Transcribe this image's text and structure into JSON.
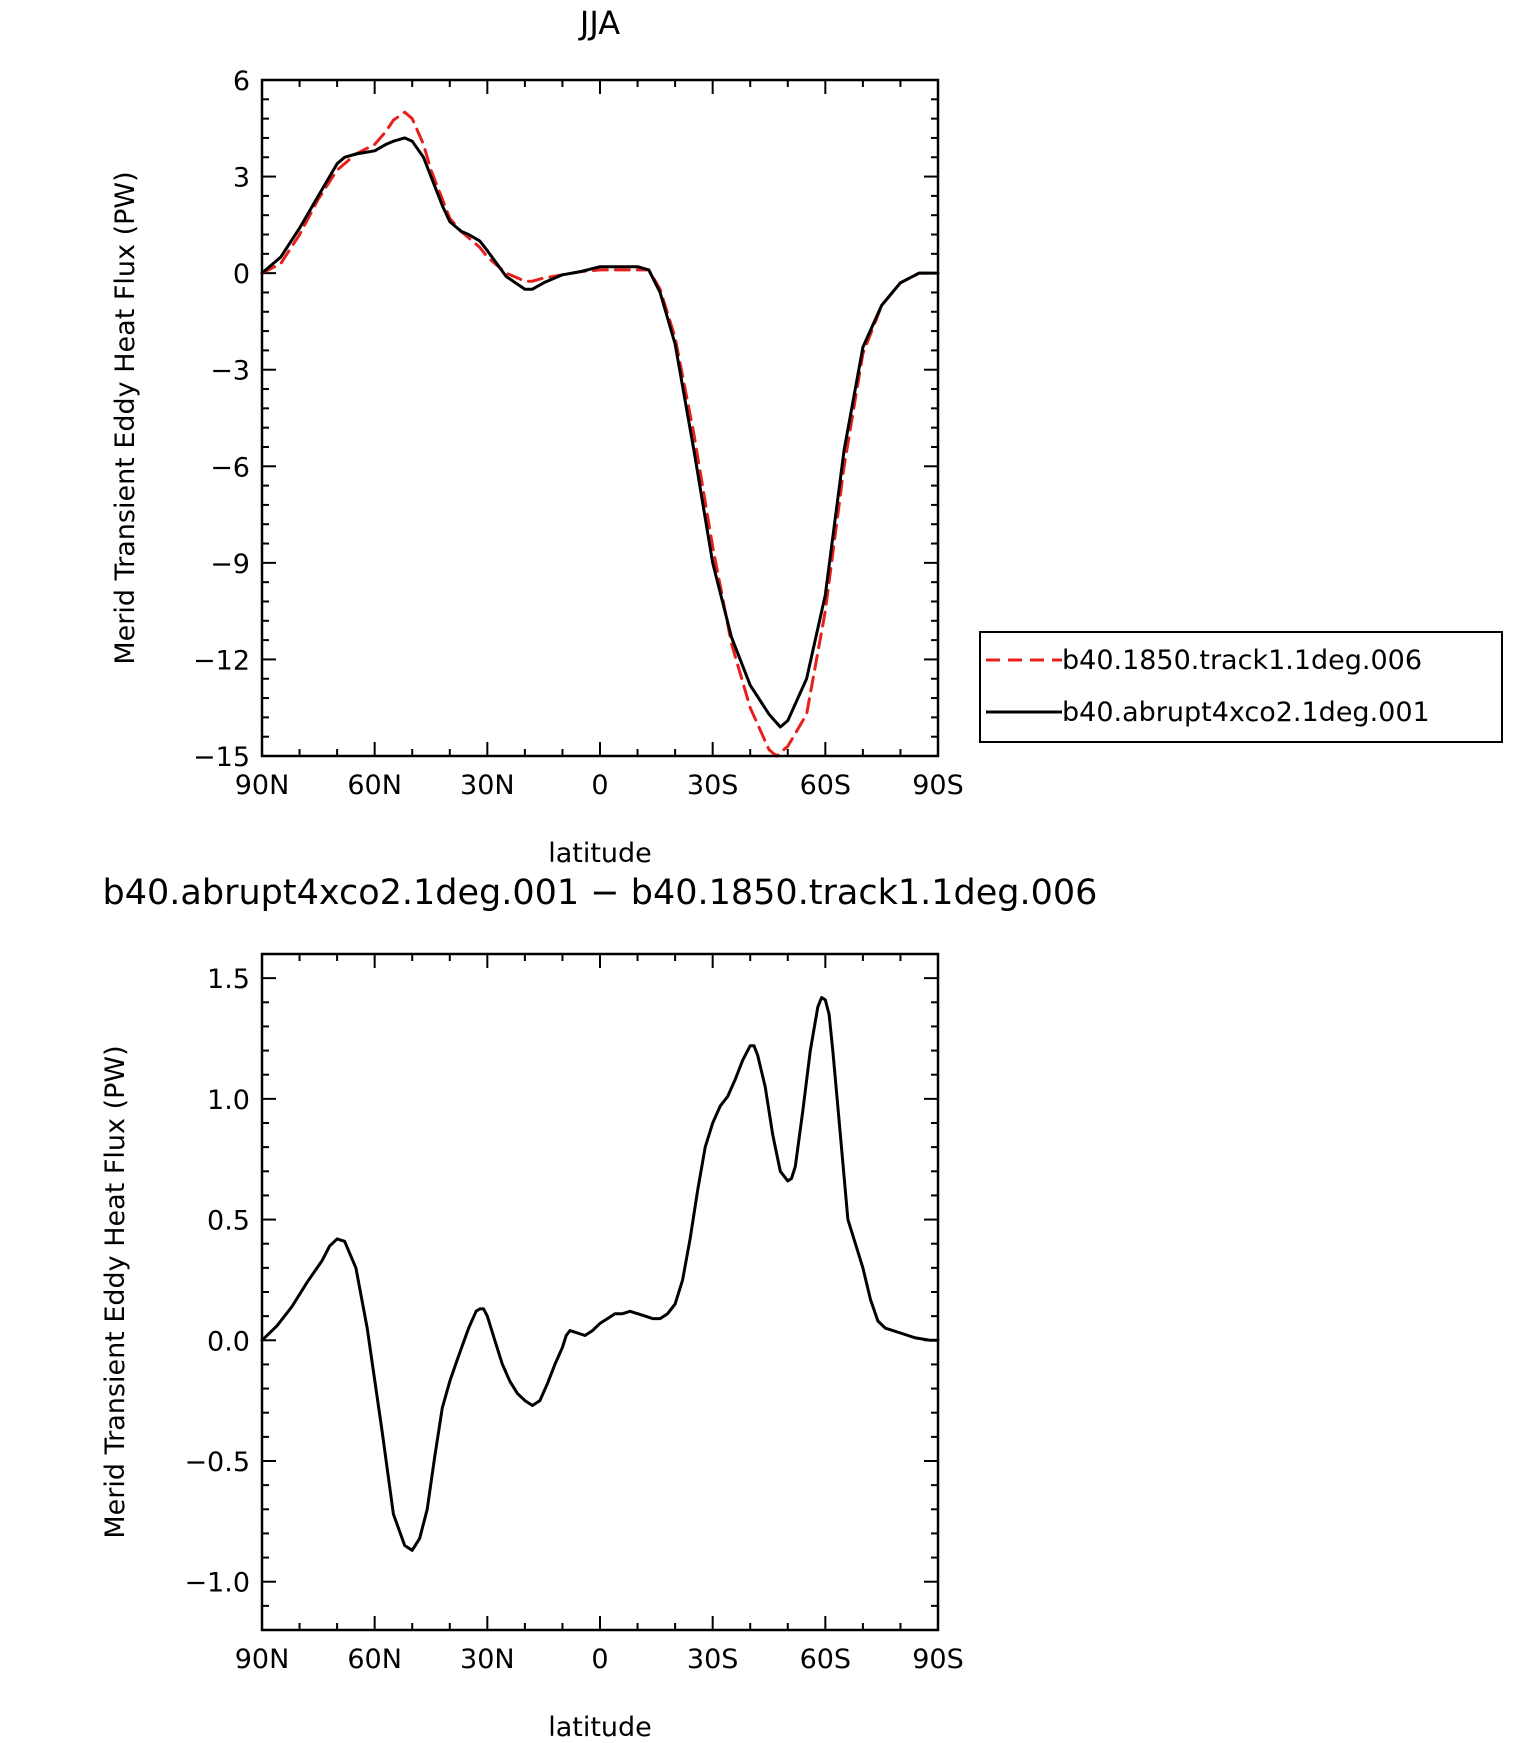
{
  "chart_data": [
    {
      "type": "line",
      "title": "JJA",
      "xlabel": "latitude",
      "ylabel": "Merid Transient Eddy Heat Flux (PW)",
      "xlim": [
        90,
        -90
      ],
      "ylim": [
        -15,
        6
      ],
      "xticks": [
        90,
        60,
        30,
        0,
        -30,
        -60,
        -90
      ],
      "xtick_labels": [
        "90N",
        "60N",
        "30N",
        "0",
        "30S",
        "60S",
        "90S"
      ],
      "yticks": [
        6,
        3,
        0,
        -3,
        -6,
        -9,
        -12,
        -15
      ],
      "ytick_labels": [
        "6",
        "3",
        "0",
        "−3",
        "−6",
        "−9",
        "−12",
        "−15"
      ],
      "legend_position": "right",
      "series": [
        {
          "name": "b40.1850.track1.1deg.006",
          "color": "#e8201c",
          "dash": "dashed",
          "x": [
            90,
            85,
            80,
            75,
            70,
            65,
            60,
            57,
            55,
            52,
            50,
            47,
            45,
            42,
            40,
            37,
            35,
            32,
            30,
            25,
            20,
            18,
            15,
            10,
            5,
            0,
            -5,
            -10,
            -13,
            -16,
            -20,
            -25,
            -30,
            -35,
            -40,
            -45,
            -47,
            -50,
            -55,
            -60,
            -65,
            -70,
            -75,
            -80,
            -85,
            -90
          ],
          "y": [
            0,
            0.3,
            1.2,
            2.3,
            3.2,
            3.7,
            4.0,
            4.4,
            4.75,
            5.0,
            4.8,
            4.0,
            3.2,
            2.3,
            1.7,
            1.3,
            1.1,
            0.8,
            0.5,
            0.0,
            -0.25,
            -0.25,
            -0.15,
            -0.05,
            0.05,
            0.1,
            0.1,
            0.1,
            0.1,
            -0.5,
            -2.0,
            -5.0,
            -8.5,
            -11.5,
            -13.5,
            -14.8,
            -15.0,
            -14.7,
            -13.7,
            -10.5,
            -6.0,
            -2.5,
            -1.0,
            -0.3,
            0,
            0
          ]
        },
        {
          "name": "b40.abrupt4xco2.1deg.001",
          "color": "#000000",
          "dash": "solid",
          "x": [
            90,
            85,
            80,
            75,
            70,
            68,
            65,
            60,
            57,
            55,
            52,
            50,
            47,
            45,
            42,
            40,
            37,
            35,
            32,
            30,
            25,
            20,
            18,
            15,
            10,
            5,
            0,
            -5,
            -10,
            -13,
            -16,
            -20,
            -25,
            -30,
            -35,
            -40,
            -45,
            -48,
            -50,
            -55,
            -60,
            -65,
            -70,
            -75,
            -80,
            -85,
            -90
          ],
          "y": [
            0,
            0.5,
            1.4,
            2.4,
            3.4,
            3.6,
            3.7,
            3.8,
            4.0,
            4.1,
            4.2,
            4.1,
            3.6,
            3.0,
            2.1,
            1.6,
            1.3,
            1.2,
            1.0,
            0.7,
            -0.1,
            -0.5,
            -0.5,
            -0.3,
            -0.05,
            0.05,
            0.2,
            0.2,
            0.2,
            0.1,
            -0.6,
            -2.2,
            -5.5,
            -9.0,
            -11.3,
            -12.8,
            -13.7,
            -14.1,
            -13.9,
            -12.6,
            -10.0,
            -5.5,
            -2.3,
            -1.0,
            -0.3,
            0,
            0
          ]
        }
      ]
    },
    {
      "type": "line",
      "title": "b40.abrupt4xco2.1deg.001 − b40.1850.track1.1deg.006",
      "xlabel": "latitude",
      "ylabel": "Merid Transient Eddy Heat Flux (PW)",
      "xlim": [
        90,
        -90
      ],
      "ylim": [
        -1.2,
        1.6
      ],
      "xticks": [
        90,
        60,
        30,
        0,
        -30,
        -60,
        -90
      ],
      "xtick_labels": [
        "90N",
        "60N",
        "30N",
        "0",
        "30S",
        "60S",
        "90S"
      ],
      "yticks": [
        1.5,
        1.0,
        0.5,
        0.0,
        -0.5,
        -1.0
      ],
      "ytick_labels": [
        "1.5",
        "1.0",
        "0.5",
        "0.0",
        "−0.5",
        "−1.0"
      ],
      "series": [
        {
          "color": "#000000",
          "dash": "solid",
          "x": [
            90,
            86,
            82,
            78,
            74,
            72,
            70,
            68,
            65,
            62,
            58,
            55,
            52,
            50,
            48,
            46,
            44,
            42,
            40,
            38,
            35,
            33,
            32,
            31,
            30,
            28,
            26,
            24,
            22,
            20,
            18,
            16,
            14,
            12,
            10,
            9,
            8,
            6,
            4,
            2,
            0,
            -2,
            -4,
            -6,
            -8,
            -10,
            -12,
            -14,
            -16,
            -18,
            -20,
            -22,
            -24,
            -26,
            -28,
            -30,
            -32,
            -34,
            -36,
            -38,
            -40,
            -41,
            -42,
            -44,
            -46,
            -48,
            -50,
            -51,
            -52,
            -54,
            -56,
            -58,
            -59,
            -60,
            -61,
            -62,
            -64,
            -66,
            -68,
            -70,
            -72,
            -74,
            -76,
            -78,
            -80,
            -82,
            -84,
            -86,
            -88,
            -90
          ],
          "y": [
            0.0,
            0.06,
            0.14,
            0.24,
            0.33,
            0.39,
            0.42,
            0.41,
            0.3,
            0.05,
            -0.38,
            -0.72,
            -0.85,
            -0.87,
            -0.82,
            -0.7,
            -0.48,
            -0.28,
            -0.17,
            -0.08,
            0.05,
            0.12,
            0.13,
            0.13,
            0.1,
            0.0,
            -0.1,
            -0.17,
            -0.22,
            -0.25,
            -0.27,
            -0.25,
            -0.18,
            -0.1,
            -0.03,
            0.02,
            0.04,
            0.03,
            0.02,
            0.04,
            0.07,
            0.09,
            0.11,
            0.11,
            0.12,
            0.11,
            0.1,
            0.09,
            0.09,
            0.11,
            0.15,
            0.25,
            0.42,
            0.62,
            0.8,
            0.9,
            0.97,
            1.01,
            1.08,
            1.16,
            1.22,
            1.22,
            1.18,
            1.05,
            0.85,
            0.7,
            0.66,
            0.67,
            0.72,
            0.95,
            1.2,
            1.38,
            1.42,
            1.41,
            1.35,
            1.2,
            0.85,
            0.5,
            0.4,
            0.3,
            0.17,
            0.08,
            0.05,
            0.04,
            0.03,
            0.02,
            0.01,
            0.005,
            0.0,
            0.0
          ]
        }
      ]
    }
  ]
}
